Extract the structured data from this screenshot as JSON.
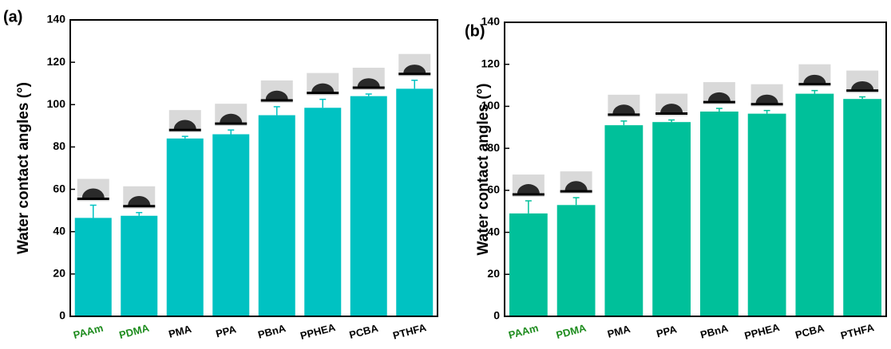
{
  "chart_data": [
    {
      "type": "bar",
      "label": "(a)",
      "y_label": "Water contact angles (°)",
      "categories": [
        "PAAm",
        "PDMA",
        "PMA",
        "PPA",
        "PBnA",
        "PPHEA",
        "PCBA",
        "PTHFA"
      ],
      "category_colors": [
        "#1e8c1e",
        "#1e8c1e",
        "#000000",
        "#000000",
        "#000000",
        "#000000",
        "#000000",
        "#000000"
      ],
      "values": [
        46.5,
        47.5,
        84,
        86,
        95,
        98.5,
        104,
        107.5
      ],
      "errors": [
        6,
        1.5,
        1,
        2,
        4,
        4,
        1,
        4
      ],
      "color": "#00c2c2",
      "ylim": [
        0,
        140
      ],
      "yticks": [
        0,
        20,
        40,
        60,
        80,
        100,
        120,
        140
      ]
    },
    {
      "type": "bar",
      "label": "(b)",
      "y_label": "Water contact angles (°)",
      "categories": [
        "PAAm",
        "PDMA",
        "PMA",
        "PPA",
        "PBnA",
        "PPHEA",
        "PCBA",
        "PTHFA"
      ],
      "category_colors": [
        "#1e8c1e",
        "#1e8c1e",
        "#000000",
        "#000000",
        "#000000",
        "#000000",
        "#000000",
        "#000000"
      ],
      "values": [
        49,
        53,
        91,
        92.5,
        97.5,
        96.5,
        106,
        103.5
      ],
      "errors": [
        6,
        3.5,
        2,
        1,
        1.5,
        1.5,
        1.5,
        1
      ],
      "color": "#00c09a",
      "ylim": [
        0,
        140
      ],
      "yticks": [
        0,
        20,
        40,
        60,
        80,
        100,
        120,
        140
      ]
    }
  ]
}
